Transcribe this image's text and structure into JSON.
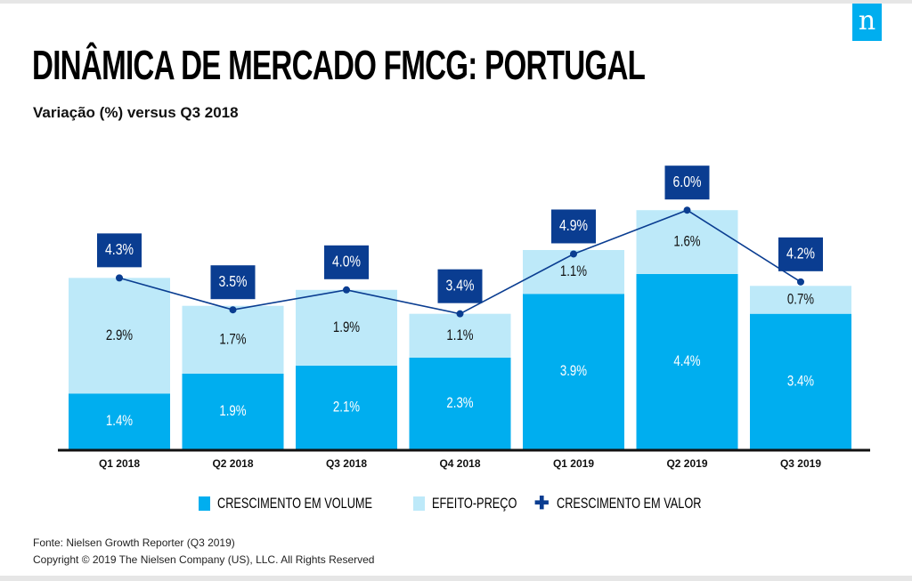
{
  "header": {
    "title": "DINÂMICA DE MERCADO FMCG: PORTUGAL",
    "subtitle": "Variação (%) versus Q3 2018",
    "logo_letter": "n"
  },
  "colors": {
    "volume": "#00aeef",
    "price": "#bde9f9",
    "value": "#0a3d91",
    "logo": "#00aeef"
  },
  "chart_data": {
    "type": "bar",
    "stacked": true,
    "title": "DINÂMICA DE MERCADO FMCG: PORTUGAL",
    "subtitle": "Variação (%) versus Q3 2018",
    "categories": [
      "Q1 2018",
      "Q2 2018",
      "Q3 2018",
      "Q4 2018",
      "Q1 2019",
      "Q2 2019",
      "Q3 2019"
    ],
    "series": [
      {
        "name": "CRESCIMENTO EM VOLUME",
        "type": "bar",
        "values": [
          1.4,
          1.9,
          2.1,
          2.3,
          3.9,
          4.4,
          3.4
        ],
        "labels": [
          "1.4%",
          "1.9%",
          "2.1%",
          "2.3%",
          "3.9%",
          "4.4%",
          "3.4%"
        ]
      },
      {
        "name": "EFEITO-PREÇO",
        "type": "bar",
        "values": [
          2.9,
          1.7,
          1.9,
          1.1,
          1.1,
          1.6,
          0.7
        ],
        "labels": [
          "2.9%",
          "1.7%",
          "1.9%",
          "1.1%",
          "1.1%",
          "1.6%",
          "0.7%"
        ]
      },
      {
        "name": "CRESCIMENTO EM VALOR",
        "type": "line",
        "values": [
          4.3,
          3.5,
          4.0,
          3.4,
          4.9,
          6.0,
          4.2
        ],
        "labels": [
          "4.3%",
          "3.5%",
          "4.0%",
          "3.4%",
          "4.9%",
          "6.0%",
          "4.2%"
        ]
      }
    ],
    "ylim": [
      0,
      6.5
    ],
    "grid": false,
    "legend": "bottom"
  },
  "footer": {
    "source": "Fonte: Nielsen Growth Reporter (Q3 2019)",
    "copyright": "Copyright © 2019 The Nielsen Company (US), LLC. All Rights Reserved"
  }
}
